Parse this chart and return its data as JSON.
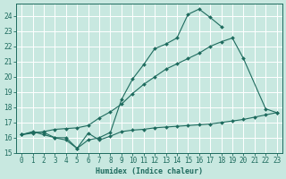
{
  "xlabel": "Humidex (Indice chaleur)",
  "bg_color": "#c8e8e0",
  "grid_color": "#ffffff",
  "line_color": "#1e6b5e",
  "xlim": [
    -0.5,
    23.5
  ],
  "ylim": [
    15.0,
    24.8
  ],
  "yticks": [
    15,
    16,
    17,
    18,
    19,
    20,
    21,
    22,
    23,
    24
  ],
  "xticks": [
    0,
    1,
    2,
    3,
    4,
    5,
    6,
    7,
    8,
    9,
    10,
    11,
    12,
    13,
    14,
    15,
    16,
    17,
    18,
    19,
    20,
    21,
    22,
    23
  ],
  "line1_x": [
    0,
    1,
    2,
    3,
    4,
    5,
    6,
    7,
    8,
    9,
    10,
    11,
    12,
    13,
    14,
    15,
    16,
    17,
    18
  ],
  "line1_y": [
    16.2,
    16.4,
    16.2,
    16.0,
    15.85,
    15.3,
    15.85,
    16.0,
    16.35,
    18.5,
    19.85,
    20.8,
    21.85,
    22.15,
    22.55,
    24.1,
    24.45,
    23.9,
    23.3
  ],
  "line2_x": [
    0,
    1,
    2,
    3,
    4,
    5,
    6,
    7,
    8,
    9,
    10,
    11,
    12,
    13,
    14,
    15,
    16,
    17,
    18,
    19,
    20,
    22,
    23
  ],
  "line2_y": [
    16.2,
    16.3,
    16.4,
    16.55,
    16.6,
    16.65,
    16.8,
    17.3,
    17.7,
    18.2,
    18.9,
    19.5,
    20.0,
    20.5,
    20.85,
    21.2,
    21.55,
    22.0,
    22.3,
    22.55,
    21.2,
    17.9,
    17.65
  ],
  "line3_x": [
    0,
    1,
    2,
    3,
    4,
    5,
    6,
    7,
    8,
    9,
    10,
    11,
    12,
    13,
    14,
    15,
    16,
    17,
    18,
    19,
    20,
    21,
    22,
    23
  ],
  "line3_y": [
    16.2,
    16.35,
    16.35,
    16.0,
    16.0,
    15.3,
    16.3,
    15.85,
    16.1,
    16.4,
    16.5,
    16.55,
    16.65,
    16.7,
    16.75,
    16.8,
    16.85,
    16.9,
    17.0,
    17.1,
    17.2,
    17.35,
    17.5,
    17.65
  ],
  "tick_fontsize": 5.5,
  "label_fontsize": 6.0
}
